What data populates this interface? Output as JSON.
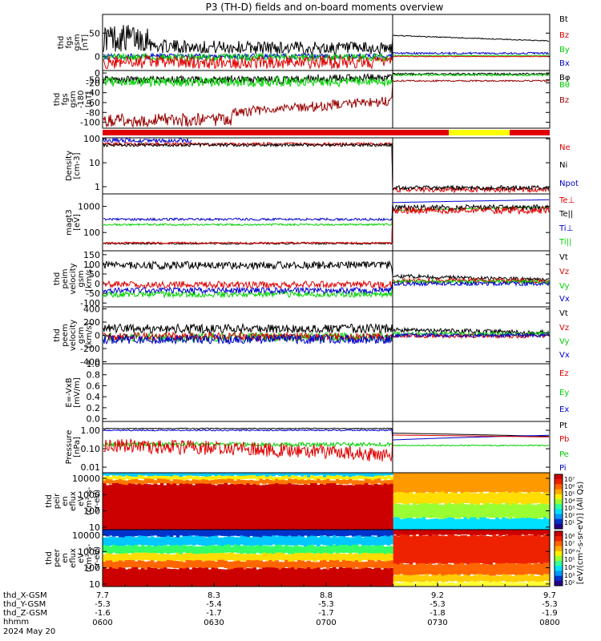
{
  "title": "P3 (TH-D) fields and on-board moments overview",
  "colors": {
    "black": "#000000",
    "red": "#e00000",
    "darkred": "#990000",
    "green": "#00d000",
    "blue": "#0000cc",
    "yellow": "#ffff00"
  },
  "chart_data": {
    "type": "line",
    "time_axis": {
      "ticks": [
        "0600",
        "0630",
        "0700",
        "0730",
        "0800"
      ],
      "date": "2024 May 20",
      "xlim": [
        "0600",
        "0800"
      ]
    },
    "ephemeris": {
      "labels": [
        "thd_X-GSM",
        "thd_Y-GSM",
        "thd_Z-GSM",
        "hhmm"
      ],
      "columns": [
        [
          "7.7",
          "-5.3",
          "-1.6"
        ],
        [
          "8.3",
          "-5.4",
          "-1.7"
        ],
        [
          "8.8",
          "-5.3",
          "-1.7"
        ],
        [
          "9.2",
          "-5.3",
          "-1.8"
        ],
        [
          "9.7",
          "-5.3",
          "-1.9"
        ]
      ]
    },
    "panels": [
      {
        "id": "fgs",
        "ylabel": [
          "thd",
          "fgs",
          "gsm",
          "[nT]"
        ],
        "scale": "linear",
        "ylim": [
          -30,
          90
        ],
        "yticks": [
          "50",
          "0",
          "-50"
        ],
        "ytick_values": [
          50,
          0,
          -50
        ],
        "legend": [
          {
            "name": "Bt",
            "color": "#000000"
          },
          {
            "name": "Bz",
            "color": "#e00000"
          },
          {
            "name": "By",
            "color": "#00d000"
          },
          {
            "name": "Bx",
            "color": "#0000cc"
          }
        ]
      },
      {
        "id": "fgs-theta",
        "ylabel": [
          "thd",
          "fgs",
          "gsm",
          "-180",
          "[nT]"
        ],
        "scale": "linear",
        "ylim": [
          -112,
          5
        ],
        "yticks": [
          "0",
          "-20",
          "-40",
          "-60",
          "-80",
          "-100"
        ],
        "ytick_values": [
          0,
          -20,
          -40,
          -60,
          -80,
          -100
        ],
        "legend": [
          {
            "name": "Bφ",
            "color": "#000000"
          },
          {
            "name": "Bθ",
            "color": "#00d000"
          },
          {
            "name": "Bz",
            "color": "#990000"
          }
        ]
      },
      {
        "id": "mode-bar",
        "segments": [
          {
            "from": "0600",
            "to": "0741",
            "color": "#e00000"
          },
          {
            "from": "0741",
            "to": "0801",
            "color": "#ffff00"
          },
          {
            "from": "0801",
            "to": "0800",
            "color": "#e00000"
          }
        ]
      },
      {
        "id": "density",
        "ylabel": [
          "Density",
          "[cm-3]"
        ],
        "scale": "log",
        "ylim": [
          0.5,
          110
        ],
        "yticks": [
          "100",
          "10",
          "1"
        ],
        "ytick_values": [
          100,
          10,
          1
        ],
        "legend": [
          {
            "name": "Ne",
            "color": "#e00000"
          },
          {
            "name": "Ni",
            "color": "#000000"
          },
          {
            "name": "Npot",
            "color": "#0000cc"
          }
        ]
      },
      {
        "id": "temperature",
        "ylabel": [
          "magt3",
          "[eV]"
        ],
        "scale": "log",
        "ylim": [
          20,
          3000
        ],
        "yticks": [
          "1000",
          "100"
        ],
        "ytick_values": [
          1000,
          100
        ],
        "legend": [
          {
            "name": "Te⊥",
            "color": "#e00000"
          },
          {
            "name": "Te||",
            "color": "#000000"
          },
          {
            "name": "Ti⊥",
            "color": "#0000cc"
          },
          {
            "name": "Ti||",
            "color": "#00d000"
          }
        ]
      },
      {
        "id": "ion-velocity",
        "ylabel": [
          "thd",
          "peim",
          "velocity",
          "gsm",
          "[km/s]"
        ],
        "scale": "linear",
        "ylim": [
          -120,
          170
        ],
        "yticks": [
          "150",
          "100",
          "50",
          "0",
          "-50",
          "-100"
        ],
        "ytick_values": [
          150,
          100,
          50,
          0,
          -50,
          -100
        ],
        "legend": [
          {
            "name": "Vt",
            "color": "#000000"
          },
          {
            "name": "Vz",
            "color": "#e00000"
          },
          {
            "name": "Vy",
            "color": "#00d000"
          },
          {
            "name": "Vx",
            "color": "#0000cc"
          }
        ]
      },
      {
        "id": "electron-velocity",
        "ylabel": [
          "thd",
          "peem",
          "velocity",
          "gsm",
          "[km/s]"
        ],
        "scale": "linear",
        "ylim": [
          -430,
          430
        ],
        "yticks": [
          "400",
          "200",
          "0",
          "-200",
          "-400"
        ],
        "ytick_values": [
          400,
          200,
          0,
          -200,
          -400
        ],
        "legend": [
          {
            "name": "Vt",
            "color": "#000000"
          },
          {
            "name": "Vz",
            "color": "#e00000"
          },
          {
            "name": "Vy",
            "color": "#00d000"
          },
          {
            "name": "Vx",
            "color": "#0000cc"
          }
        ]
      },
      {
        "id": "efield",
        "ylabel": [
          "E=-VxB",
          "[mV/m]"
        ],
        "scale": "linear",
        "ylim": [
          -0.05,
          1.0
        ],
        "yticks": [
          "1.0",
          "0.8",
          "0.6",
          "0.4",
          "0.2",
          "0.0"
        ],
        "ytick_values": [
          1.0,
          0.8,
          0.6,
          0.4,
          0.2,
          0.0
        ],
        "legend": [
          {
            "name": "Ez",
            "color": "#e00000"
          },
          {
            "name": "Ey",
            "color": "#00d000"
          },
          {
            "name": "Ex",
            "color": "#0000cc"
          }
        ]
      },
      {
        "id": "pressure",
        "ylabel": [
          "Pressure",
          "[nPa]"
        ],
        "scale": "log",
        "ylim": [
          0.005,
          3
        ],
        "yticks": [
          "1.00",
          "0.10",
          "0.01"
        ],
        "ytick_values": [
          1,
          0.1,
          0.01
        ],
        "legend": [
          {
            "name": "Pt",
            "color": "#000000"
          },
          {
            "name": "Pb",
            "color": "#e00000"
          },
          {
            "name": "Pe",
            "color": "#00d000"
          },
          {
            "name": "Pi",
            "color": "#0000cc"
          }
        ]
      },
      {
        "id": "ion-spectrogram",
        "type": "heatmap",
        "ylabel": [
          "thd",
          "peir",
          "en",
          "eflux",
          "eV",
          "(cm²-s-",
          "sr-eV)"
        ],
        "scale": "log",
        "ylim": [
          7,
          22000
        ],
        "yticks": [
          "10000",
          "1000",
          "100",
          "10"
        ],
        "ytick_values": [
          10000,
          1000,
          100,
          10
        ]
      },
      {
        "id": "electron-spectrogram",
        "type": "heatmap",
        "ylabel": [
          "thd",
          "peer",
          "en",
          "eflux",
          "eV",
          "(cm²-s-",
          "sr-eV)"
        ],
        "scale": "log",
        "ylim": [
          7,
          22000
        ],
        "yticks": [
          "10000",
          "1000",
          "100",
          "10"
        ],
        "ytick_values": [
          10000,
          1000,
          100,
          10
        ]
      }
    ],
    "colorbar": {
      "label": "[eV/(cm²-s-sr-eV)] (All Qs)",
      "ticks": [
        "10⁷",
        "10⁶",
        "10⁵",
        "10⁴",
        "10³",
        "10²",
        "10¹",
        "10⁸",
        "10⁷",
        "10⁶",
        "10⁵",
        "10⁴",
        "10³",
        "10²"
      ]
    }
  }
}
